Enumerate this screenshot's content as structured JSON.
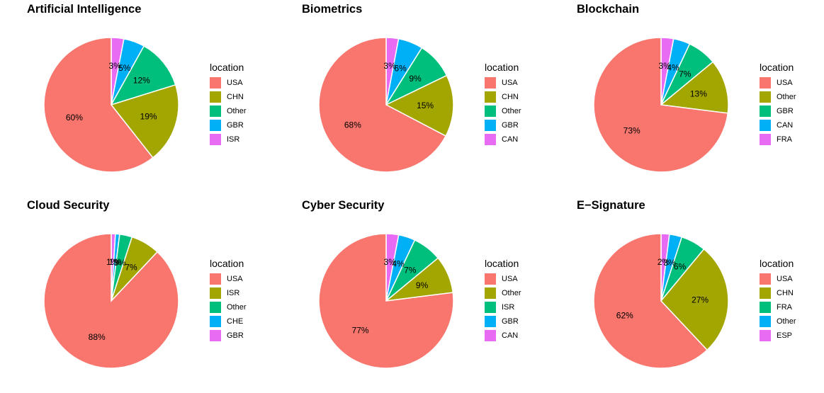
{
  "colors": {
    "USA": "#F8766D",
    "CHN": "#A3A500",
    "Other": "#00BF7D",
    "GBR": "#00B0F6",
    "ISR": "#E76BF3",
    "CAN": "#E76BF3",
    "FRA": "#E76BF3",
    "CHE": "#00B0F6",
    "ESP": "#E76BF3"
  },
  "legend_title": "location",
  "chart_data": [
    {
      "type": "pie",
      "title": "Artificial Intelligence",
      "legend": [
        "USA",
        "CHN",
        "Other",
        "GBR",
        "ISR"
      ],
      "slice_colors": [
        "#F8766D",
        "#A3A500",
        "#00BF7D",
        "#00B0F6",
        "#E76BF3"
      ],
      "values": [
        60,
        19,
        12,
        5,
        3
      ],
      "labels": [
        "60%",
        "19%",
        "12%",
        "5%",
        "3%"
      ]
    },
    {
      "type": "pie",
      "title": "Biometrics",
      "legend": [
        "USA",
        "CHN",
        "Other",
        "GBR",
        "CAN"
      ],
      "slice_colors": [
        "#F8766D",
        "#A3A500",
        "#00BF7D",
        "#00B0F6",
        "#E76BF3"
      ],
      "values": [
        68,
        15,
        9,
        6,
        3
      ],
      "labels": [
        "68%",
        "15%",
        "9%",
        "6%",
        "3%"
      ]
    },
    {
      "type": "pie",
      "title": "Blockchain",
      "legend": [
        "USA",
        "Other",
        "GBR",
        "CAN",
        "FRA"
      ],
      "slice_colors": [
        "#F8766D",
        "#A3A500",
        "#00BF7D",
        "#00B0F6",
        "#E76BF3"
      ],
      "values": [
        73,
        13,
        7,
        4,
        3
      ],
      "labels": [
        "73%",
        "13%",
        "7%",
        "4%",
        "3%"
      ]
    },
    {
      "type": "pie",
      "title": "Cloud Security",
      "legend": [
        "USA",
        "ISR",
        "Other",
        "CHE",
        "GBR"
      ],
      "slice_colors": [
        "#F8766D",
        "#A3A500",
        "#00BF7D",
        "#00B0F6",
        "#E76BF3"
      ],
      "values": [
        88,
        7,
        3,
        1,
        1
      ],
      "labels": [
        "88%",
        "7%",
        "3%",
        "1%",
        "1%"
      ]
    },
    {
      "type": "pie",
      "title": "Cyber Security",
      "legend": [
        "USA",
        "Other",
        "ISR",
        "GBR",
        "CAN"
      ],
      "slice_colors": [
        "#F8766D",
        "#A3A500",
        "#00BF7D",
        "#00B0F6",
        "#E76BF3"
      ],
      "values": [
        77,
        9,
        7,
        4,
        3
      ],
      "labels": [
        "77%",
        "9%",
        "7%",
        "4%",
        "3%"
      ]
    },
    {
      "type": "pie",
      "title": "E−Signature",
      "legend": [
        "USA",
        "CHN",
        "FRA",
        "Other",
        "ESP"
      ],
      "slice_colors": [
        "#F8766D",
        "#A3A500",
        "#00BF7D",
        "#00B0F6",
        "#E76BF3"
      ],
      "values": [
        62,
        27,
        6,
        3,
        2
      ],
      "labels": [
        "62%",
        "27%",
        "6%",
        "3%",
        "2%"
      ]
    }
  ]
}
